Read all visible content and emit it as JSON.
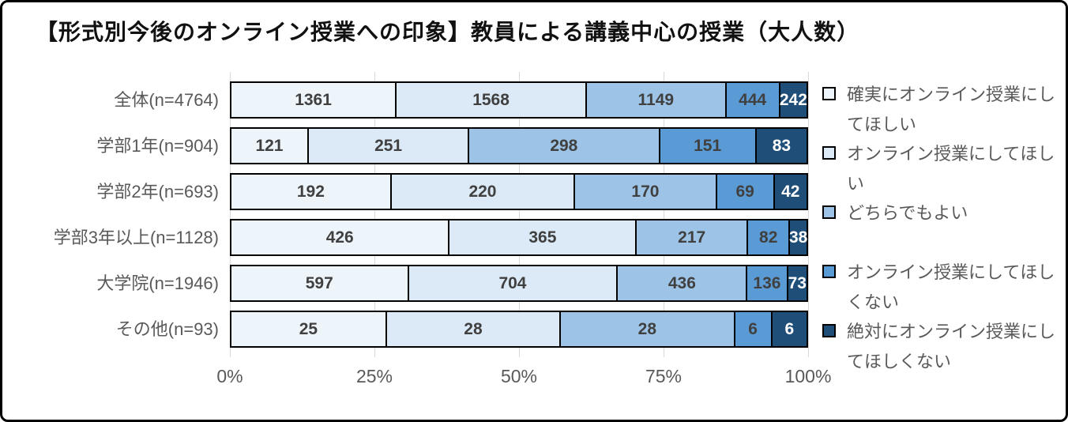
{
  "title": "【形式別今後のオンライン授業への印象】教員による講義中心の授業（大人数）",
  "chart_data": {
    "type": "bar",
    "orientation": "horizontal",
    "stacked": true,
    "percent_axis": true,
    "title": "【形式別今後のオンライン授業への印象】教員による講義中心の授業（大人数）",
    "categories": [
      "全体(n=4764)",
      "学部1年(n=904)",
      "学部2年(n=693)",
      "学部3年以上(n=1128)",
      "大学院(n=1946)",
      "その他(n=93)"
    ],
    "series": [
      {
        "name": "確実にオンライン授業にしてほしい",
        "color": "#EDF4FA",
        "label_color": "#404040",
        "values": [
          1361,
          121,
          192,
          426,
          597,
          25
        ]
      },
      {
        "name": "オンライン授業にしてほしい",
        "color": "#DCE9F6",
        "label_color": "#404040",
        "values": [
          1568,
          251,
          220,
          365,
          704,
          28
        ]
      },
      {
        "name": "どちらでもよい",
        "color": "#9DC3E6",
        "label_color": "#404040",
        "values": [
          1149,
          298,
          170,
          217,
          436,
          28
        ]
      },
      {
        "name": "オンライン授業にしてほしくない",
        "color": "#5B9BD5",
        "label_color": "#404040",
        "values": [
          444,
          151,
          69,
          82,
          136,
          6
        ]
      },
      {
        "name": "絶対にオンライン授業にしてほしくない",
        "color": "#1F4E79",
        "label_color": "#FFFFFF",
        "values": [
          242,
          83,
          42,
          38,
          73,
          6
        ]
      }
    ],
    "x_ticks": [
      "0%",
      "25%",
      "50%",
      "75%",
      "100%"
    ],
    "xlim": [
      0,
      100
    ],
    "grid": true,
    "legend_position": "right",
    "gridline_color": "#D9D9D9",
    "segment_border_color": "#000000",
    "axis_text_color": "#595959",
    "data_label_color": "#404040"
  }
}
